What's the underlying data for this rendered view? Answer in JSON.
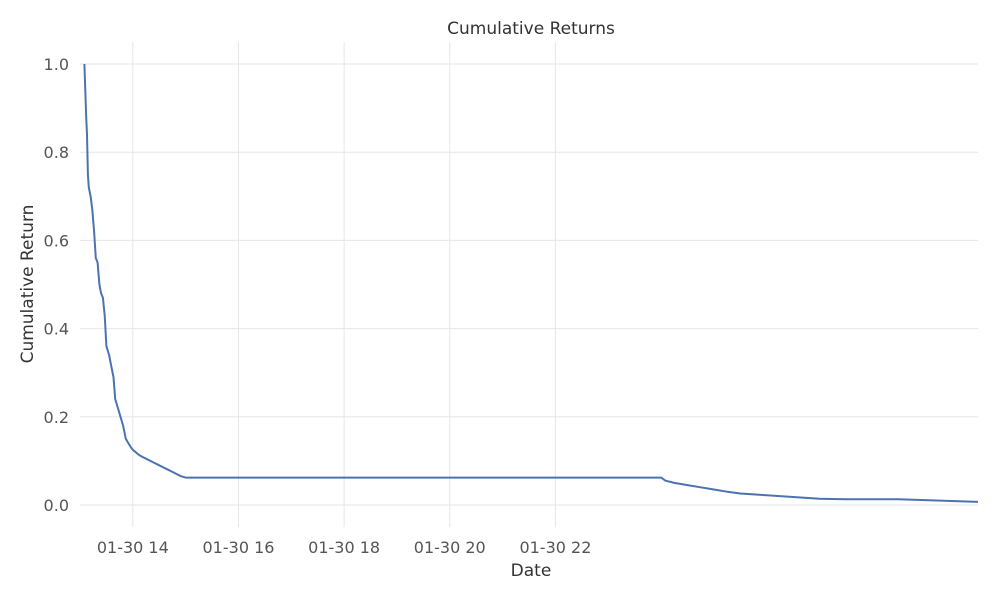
{
  "chart_data": {
    "type": "line",
    "title": "Cumulative Returns",
    "xlabel": "Date",
    "ylabel": "Cumulative Return",
    "xlim": [
      "01-30 13:00",
      "01-31 06:00"
    ],
    "ylim": [
      -0.05,
      1.05
    ],
    "x_ticks": [
      "01-30 14",
      "01-30 16",
      "01-30 18",
      "01-30 20",
      "01-30 22"
    ],
    "y_ticks": [
      "0.0",
      "0.2",
      "0.4",
      "0.6",
      "0.8",
      "1.0"
    ],
    "grid": true,
    "line_color": "#4c72b0",
    "series": [
      {
        "x": [
          "01-30 13:05",
          "01-30 13:06",
          "01-30 13:07",
          "01-30 13:08",
          "01-30 13:09",
          "01-30 13:10",
          "01-30 13:12",
          "01-30 13:14",
          "01-30 13:16",
          "01-30 13:18",
          "01-30 13:20",
          "01-30 13:22",
          "01-30 13:24",
          "01-30 13:26",
          "01-30 13:28",
          "01-30 13:30",
          "01-30 13:33",
          "01-30 13:36",
          "01-30 13:38",
          "01-30 13:40",
          "01-30 13:43",
          "01-30 13:46",
          "01-30 13:49",
          "01-30 13:52",
          "01-30 13:55",
          "01-30 13:58",
          "01-30 14:00",
          "01-30 14:03",
          "01-30 14:06",
          "01-30 14:10",
          "01-30 14:15",
          "01-30 14:20",
          "01-30 14:25",
          "01-30 14:30",
          "01-30 14:35",
          "01-30 14:40",
          "01-30 14:45",
          "01-30 14:50",
          "01-30 14:55",
          "01-30 15:00",
          "01-31 00:00",
          "01-31 00:05",
          "01-31 00:15",
          "01-31 00:30",
          "01-31 00:45",
          "01-31 01:00",
          "01-31 01:15",
          "01-31 01:30",
          "01-31 01:45",
          "01-31 02:00",
          "01-31 02:30",
          "01-31 03:00",
          "01-31 03:30",
          "01-31 04:00",
          "01-31 04:30",
          "01-31 05:00",
          "01-31 05:30",
          "01-31 06:00"
        ],
        "y": [
          1.0,
          0.94,
          0.88,
          0.84,
          0.75,
          0.72,
          0.7,
          0.67,
          0.62,
          0.56,
          0.55,
          0.5,
          0.48,
          0.47,
          0.43,
          0.36,
          0.34,
          0.31,
          0.29,
          0.24,
          0.22,
          0.2,
          0.18,
          0.15,
          0.14,
          0.13,
          0.125,
          0.12,
          0.115,
          0.11,
          0.105,
          0.1,
          0.095,
          0.09,
          0.085,
          0.08,
          0.075,
          0.07,
          0.065,
          0.062,
          0.062,
          0.055,
          0.05,
          0.045,
          0.04,
          0.035,
          0.03,
          0.026,
          0.024,
          0.022,
          0.018,
          0.014,
          0.013,
          0.013,
          0.013,
          0.011,
          0.009,
          0.007
        ]
      }
    ]
  }
}
